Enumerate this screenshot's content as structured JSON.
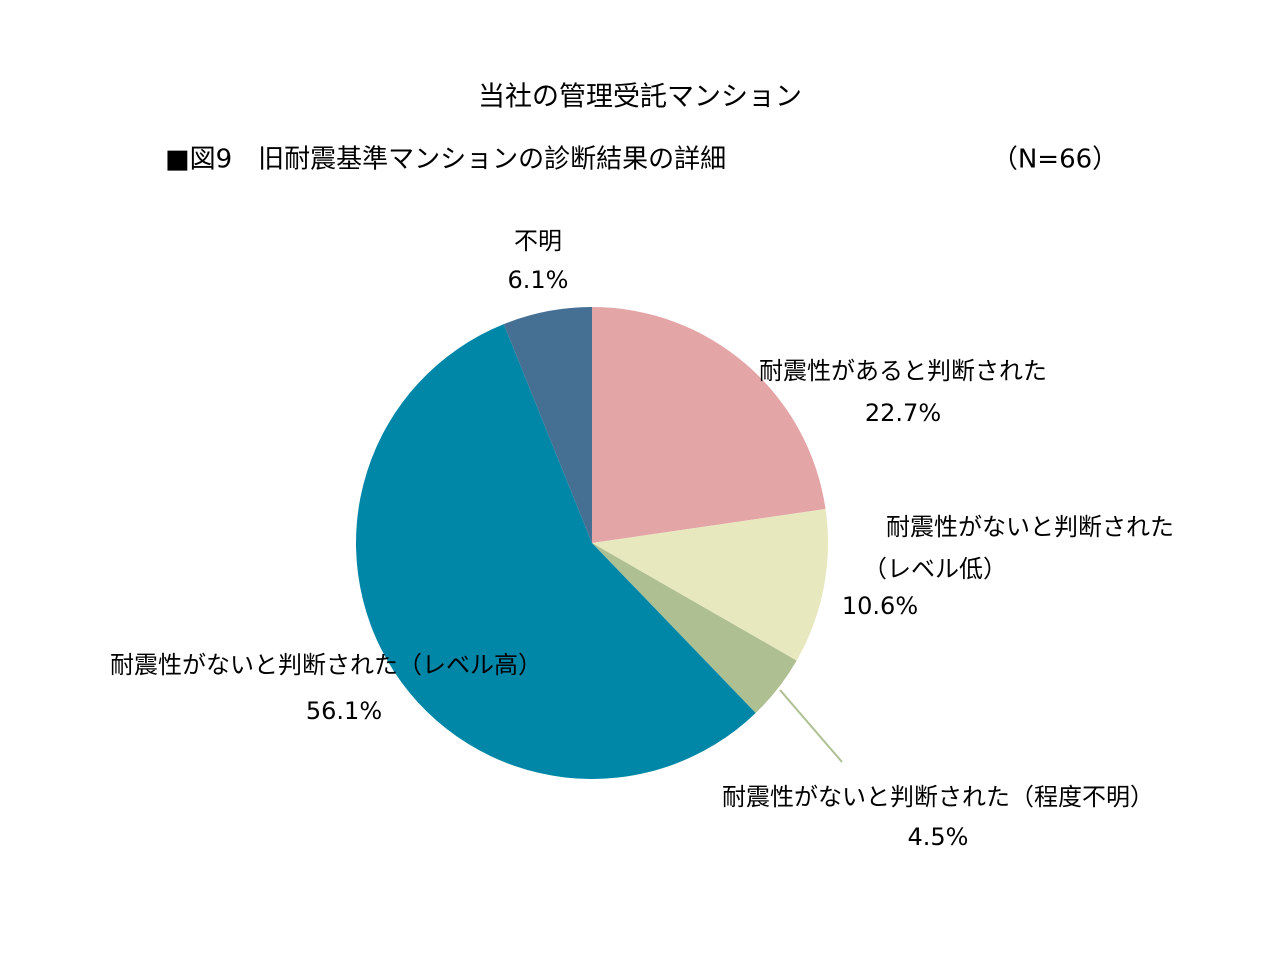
{
  "chart_data": {
    "type": "pie",
    "title": "当社の管理受託マンション",
    "subtitle": "■図9　旧耐震基準マンションの診断結果の詳細",
    "annotation": "（N=66）",
    "categories": [
      "耐震性があると判断された",
      "耐震性がないと判断された\n（レベル低）",
      "耐震性がないと判断された（程度不明）",
      "耐震性がないと判断された（レベル高）",
      "不明"
    ],
    "values": [
      22.7,
      10.6,
      4.5,
      56.1,
      6.1
    ],
    "value_labels": [
      "22.7%",
      "10.6%",
      "4.5%",
      "56.1%",
      "6.1%"
    ],
    "colors": [
      "#e4a5a7",
      "#e8e8bf",
      "#aebf91",
      "#0087a8",
      "#456f93"
    ]
  }
}
